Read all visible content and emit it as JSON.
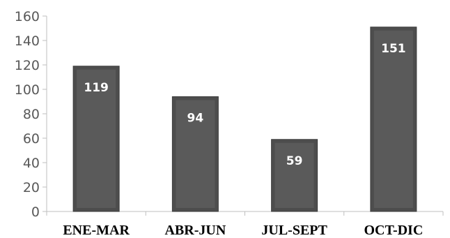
{
  "chart_data": {
    "type": "bar",
    "title": "",
    "xlabel": "",
    "ylabel": "",
    "categories": [
      "ENE-MAR",
      "ABR-JUN",
      "JUL-SEPT",
      "OCT-DIC"
    ],
    "values": [
      119,
      94,
      59,
      151
    ],
    "data_labels": [
      "119",
      "94",
      "59",
      "151"
    ],
    "ylim": [
      0,
      160
    ],
    "yticks": [
      0,
      20,
      40,
      60,
      80,
      100,
      120,
      140,
      160
    ],
    "grid": false,
    "legend": "none",
    "colors": {
      "bar_fill": "#4d4d4d",
      "bar_inner": "#5a5a5a",
      "bar_border": "#3c3c3c",
      "axis": "#bfbfbf",
      "tick_text": "#595959",
      "category_text": "#000000",
      "data_label_text": "#ffffff"
    }
  }
}
